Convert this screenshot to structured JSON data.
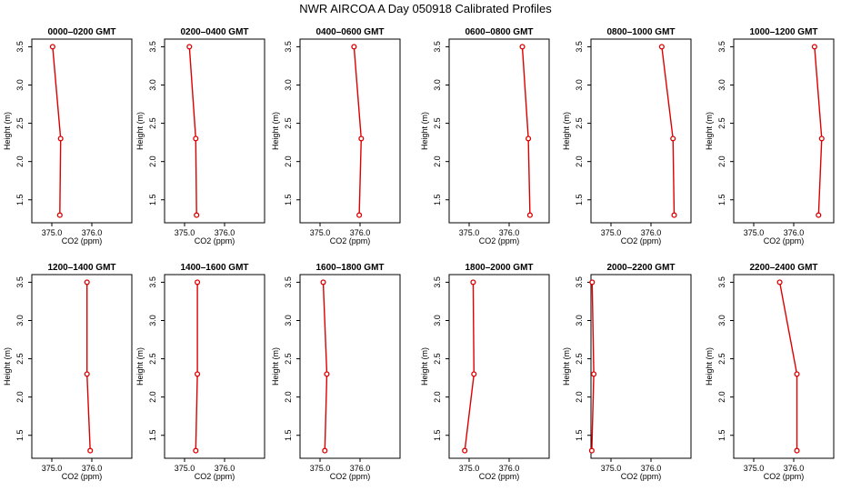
{
  "title": "NWR AIRCOA A  Day 050918  Calibrated Profiles",
  "colors": {
    "series": "#dd0000",
    "frame": "#000000",
    "background": "#ffffff"
  },
  "chart_data": {
    "type": "line",
    "layout": "2 rows x 6 columns of small-multiple profile plots",
    "xlabel": "CO2 (ppm)",
    "ylabel": "Height (m)",
    "xlim": [
      374.5,
      377.0
    ],
    "ylim": [
      1.2,
      3.6
    ],
    "x_ticks": [
      "375.0",
      "376.0"
    ],
    "x_tick_values": [
      375.0,
      376.0
    ],
    "y_ticks": [
      "1.5",
      "2.0",
      "2.5",
      "3.0",
      "3.5"
    ],
    "y_tick_values": [
      1.5,
      2.0,
      2.5,
      3.0,
      3.5
    ],
    "heights": [
      3.5,
      2.3,
      1.3
    ],
    "panels": [
      {
        "title": "0000–0200 GMT",
        "x": [
          375.02,
          375.22,
          375.2
        ]
      },
      {
        "title": "0200–0400 GMT",
        "x": [
          375.12,
          375.28,
          375.3
        ]
      },
      {
        "title": "0400–0600 GMT",
        "x": [
          375.85,
          376.03,
          375.98
        ]
      },
      {
        "title": "0600–0800 GMT",
        "x": [
          376.33,
          376.48,
          376.52
        ]
      },
      {
        "title": "0800–1000 GMT",
        "x": [
          376.27,
          376.55,
          376.58
        ]
      },
      {
        "title": "1000–1200 GMT",
        "x": [
          376.52,
          376.7,
          376.62
        ]
      },
      {
        "title": "1200–1400 GMT",
        "x": [
          375.88,
          375.88,
          375.96
        ]
      },
      {
        "title": "1400–1600 GMT",
        "x": [
          375.32,
          375.32,
          375.28
        ]
      },
      {
        "title": "1600–1800 GMT",
        "x": [
          375.08,
          375.17,
          375.12
        ]
      },
      {
        "title": "1800–2000 GMT",
        "x": [
          375.1,
          375.12,
          374.89
        ]
      },
      {
        "title": "2000–2200 GMT",
        "x": [
          374.53,
          374.57,
          374.52
        ]
      },
      {
        "title": "2200–2400 GMT",
        "x": [
          375.65,
          376.08,
          376.08
        ]
      }
    ]
  }
}
